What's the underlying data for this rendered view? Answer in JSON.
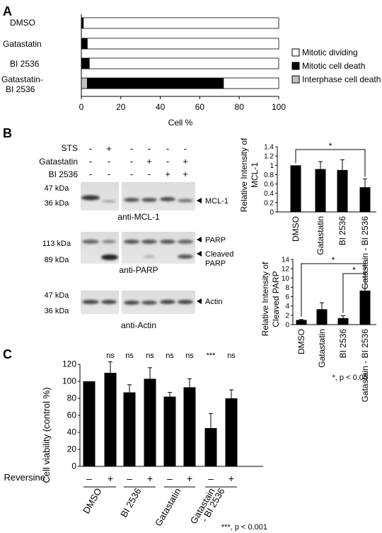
{
  "panels": {
    "a": "A",
    "b": "B",
    "c": "C"
  },
  "chart_data": [
    {
      "type": "bar",
      "orientation": "horizontal",
      "stacked": true,
      "categories": [
        "DMSO",
        "Gatastatin",
        "BI 2536",
        [
          "Gatastatin-",
          "BI 2536"
        ]
      ],
      "series": [
        {
          "name": "Mitotic dividing",
          "color": "#ffffff",
          "values": [
            99,
            97,
            96,
            28
          ]
        },
        {
          "name": "Mitotic cell death",
          "color": "#000000",
          "values": [
            1,
            3,
            4,
            69
          ]
        },
        {
          "name": "Interphase  cell death",
          "color": "#c0c0c0",
          "values": [
            0,
            0,
            0,
            3
          ]
        }
      ],
      "xlabel": "Cell %",
      "xlim": [
        0,
        100
      ],
      "ticks": [
        "0",
        "20",
        "40",
        "60",
        "80",
        "100"
      ],
      "legend": "right"
    },
    {
      "type": "bar",
      "categories": [
        "DMSO",
        "Gatastatin",
        "BI 2536",
        "Gatastain - BI 2536"
      ],
      "values": [
        1.0,
        0.92,
        0.9,
        0.53
      ],
      "errors": [
        0.01,
        0.16,
        0.22,
        0.18
      ],
      "ylabel": [
        "Relative Intensity of",
        "MCL-1"
      ],
      "ylim": [
        0,
        1.4
      ],
      "ticks": [
        "0",
        "0.2",
        "0.4",
        "0.6",
        "0.8",
        "1",
        "1.2",
        "1.4"
      ],
      "significance": "*"
    },
    {
      "type": "bar",
      "categories": [
        "DMSO",
        "Gatastatin",
        "BI 2536",
        "Gatastain - BI 2536"
      ],
      "values": [
        1.0,
        3.3,
        1.4,
        7.3
      ],
      "errors": [
        0.1,
        1.4,
        0.5,
        4.0
      ],
      "ylabel": [
        "Relative Intensity of",
        "Cleaved PARP"
      ],
      "ylim": [
        0,
        14
      ],
      "ticks": [
        "0",
        "2",
        "4",
        "6",
        "8",
        "10",
        "12",
        "14"
      ],
      "significance": [
        "*",
        "*"
      ],
      "footnote": "*, p < 0.05"
    },
    {
      "type": "bar",
      "categories": [
        "DMSO",
        "BI 2536",
        "Gatastatin",
        [
          "Gatastain",
          "- BI 2536"
        ]
      ],
      "bars": [
        {
          "reversine": "–",
          "value": 100,
          "error": 0,
          "sig": ""
        },
        {
          "reversine": "+",
          "value": 110,
          "error": 13,
          "sig": "ns"
        },
        {
          "reversine": "–",
          "value": 87,
          "error": 9,
          "sig": "ns"
        },
        {
          "reversine": "+",
          "value": 103,
          "error": 13,
          "sig": "ns"
        },
        {
          "reversine": "–",
          "value": 82,
          "error": 5,
          "sig": "ns"
        },
        {
          "reversine": "+",
          "value": 93,
          "error": 10,
          "sig": "ns"
        },
        {
          "reversine": "–",
          "value": 45,
          "error": 17,
          "sig": "***"
        },
        {
          "reversine": "+",
          "value": 80,
          "error": 10,
          "sig": "ns"
        }
      ],
      "ylabel": "Cell viability (control %)",
      "ylim": [
        0,
        120
      ],
      "ticks": [
        "0",
        "20",
        "40",
        "60",
        "80",
        "100",
        "120"
      ],
      "row_label": "Reversine",
      "footnote": "***, p < 0.001"
    }
  ],
  "blots": {
    "treatments": [
      {
        "label": "STS",
        "signs": [
          "-",
          "+",
          "-",
          "-",
          "-",
          "-",
          "-"
        ]
      },
      {
        "label": "Gatastatin",
        "signs": [
          "-",
          "-",
          "-",
          "-",
          "+",
          "-",
          "+"
        ]
      },
      {
        "label": "BI 2536",
        "signs": [
          "-",
          "-",
          "-",
          "-",
          "-",
          "+",
          "+"
        ]
      }
    ],
    "mcl1": {
      "markers": [
        "47 kDa",
        "36 kDa"
      ],
      "bands": [
        "MCL-1"
      ],
      "caption": "anti-MCL-1"
    },
    "parp": {
      "markers": [
        "113 kDa",
        "89 kDa"
      ],
      "bands": [
        "PARP",
        "Cleaved",
        "PARP"
      ],
      "caption": "anti-PARP"
    },
    "actin": {
      "markers": [
        "47 kDa",
        "36 kDa"
      ],
      "bands": [
        "Actin"
      ],
      "caption": "anti-Actin"
    }
  }
}
